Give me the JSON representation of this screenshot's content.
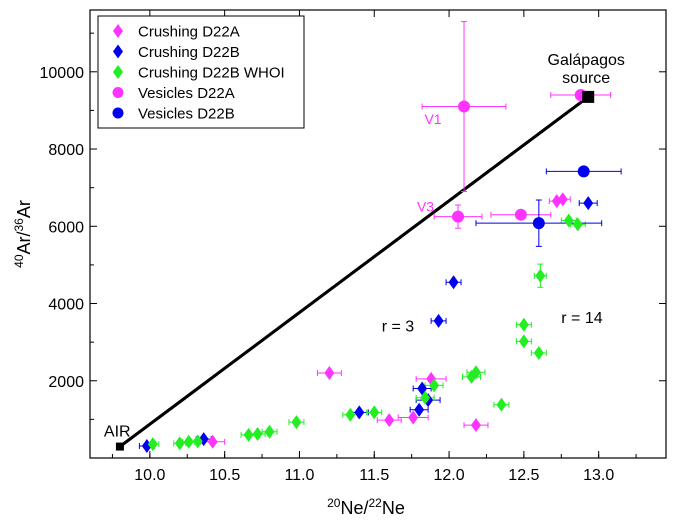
{
  "chart_data": {
    "type": "scatter",
    "xlabel": {
      "sup": "20",
      "base": "Ne/",
      "sup2": "22",
      "base2": "Ne"
    },
    "ylabel": {
      "sup": "40",
      "base": "Ar/",
      "sup2": "36",
      "base2": "Ar"
    },
    "xlim": [
      9.6,
      13.45
    ],
    "ylim": [
      0,
      11600
    ],
    "xticks": [
      "10.0",
      "10.5",
      "11.0",
      "11.5",
      "12.0",
      "12.5",
      "13.0"
    ],
    "xtick_values": [
      10.0,
      10.5,
      11.0,
      11.5,
      12.0,
      12.5,
      13.0
    ],
    "yticks": [
      "2000",
      "4000",
      "6000",
      "8000",
      "10000"
    ],
    "ytick_values": [
      2000,
      4000,
      6000,
      8000,
      10000
    ],
    "colors": {
      "magenta": "#ff33ff",
      "blue": "#0000ee",
      "green": "#22ee22",
      "r3_curve": "#606060",
      "r14_curve": "#000000"
    },
    "series": [
      {
        "name": "Crushing D22A",
        "marker": "diamond",
        "color": "#ff33ff",
        "points": [
          {
            "x": 11.2,
            "y": 2200,
            "xerr": 0.08
          },
          {
            "x": 11.88,
            "y": 2050,
            "xerr": 0.1
          },
          {
            "x": 11.76,
            "y": 1050,
            "xerr": 0.1
          },
          {
            "x": 11.6,
            "y": 980,
            "xerr": 0.08
          },
          {
            "x": 12.18,
            "y": 850,
            "xerr": 0.08
          },
          {
            "x": 10.42,
            "y": 420,
            "xerr": 0.08
          },
          {
            "x": 12.72,
            "y": 6650,
            "xerr": 0.05
          },
          {
            "x": 12.76,
            "y": 6700,
            "xerr": 0.05
          }
        ]
      },
      {
        "name": "Crushing D22B",
        "marker": "diamond",
        "color": "#0000ee",
        "points": [
          {
            "x": 12.03,
            "y": 4550,
            "xerr": 0.05
          },
          {
            "x": 11.93,
            "y": 3550,
            "xerr": 0.05
          },
          {
            "x": 11.82,
            "y": 1800,
            "xerr": 0.06
          },
          {
            "x": 11.86,
            "y": 1500,
            "xerr": 0.08
          },
          {
            "x": 11.8,
            "y": 1250,
            "xerr": 0.06
          },
          {
            "x": 11.4,
            "y": 1180,
            "xerr": 0.06
          },
          {
            "x": 10.36,
            "y": 490,
            "xerr": 0.05
          },
          {
            "x": 9.98,
            "y": 310,
            "xerr": 0.05
          },
          {
            "x": 12.93,
            "y": 6600,
            "xerr": 0.06
          }
        ]
      },
      {
        "name": "Crushing D22B WHOI",
        "marker": "diamond",
        "color": "#22ee22",
        "points": [
          {
            "x": 10.02,
            "y": 360,
            "xerr": 0.04
          },
          {
            "x": 10.2,
            "y": 380,
            "xerr": 0.04
          },
          {
            "x": 10.26,
            "y": 420,
            "xerr": 0.04
          },
          {
            "x": 10.32,
            "y": 430,
            "xerr": 0.04
          },
          {
            "x": 10.66,
            "y": 600,
            "xerr": 0.05
          },
          {
            "x": 10.72,
            "y": 620,
            "xerr": 0.05
          },
          {
            "x": 10.8,
            "y": 680,
            "xerr": 0.05
          },
          {
            "x": 10.98,
            "y": 930,
            "xerr": 0.05
          },
          {
            "x": 11.34,
            "y": 1120,
            "xerr": 0.05
          },
          {
            "x": 11.5,
            "y": 1180,
            "xerr": 0.05
          },
          {
            "x": 11.84,
            "y": 1560,
            "xerr": 0.06
          },
          {
            "x": 11.9,
            "y": 1880,
            "xerr": 0.06
          },
          {
            "x": 12.15,
            "y": 2100,
            "xerr": 0.06
          },
          {
            "x": 12.18,
            "y": 2220,
            "xerr": 0.06
          },
          {
            "x": 12.35,
            "y": 1380,
            "xerr": 0.05
          },
          {
            "x": 12.5,
            "y": 3450,
            "xerr": 0.05
          },
          {
            "x": 12.5,
            "y": 3020,
            "xerr": 0.05
          },
          {
            "x": 12.6,
            "y": 2720,
            "xerr": 0.05
          },
          {
            "x": 12.61,
            "y": 4720,
            "xerr": 0.04,
            "yerr": 300
          },
          {
            "x": 12.8,
            "y": 6150,
            "xerr": 0.05
          },
          {
            "x": 12.86,
            "y": 6050,
            "xerr": 0.05
          }
        ]
      },
      {
        "name": "Vesicles D22A",
        "marker": "circle",
        "color": "#ff33ff",
        "points": [
          {
            "x": 12.1,
            "y": 9100,
            "xerr": 0.28,
            "yerr": 2200
          },
          {
            "x": 12.06,
            "y": 6250,
            "xerr": 0.16,
            "yerr": 300
          },
          {
            "x": 12.48,
            "y": 6300,
            "xerr": 0.2
          },
          {
            "x": 12.88,
            "y": 9400,
            "xerr": 0.2
          }
        ]
      },
      {
        "name": "Vesicles D22B",
        "marker": "circle",
        "color": "#0000ee",
        "points": [
          {
            "x": 12.9,
            "y": 7420,
            "xerr": 0.25
          },
          {
            "x": 12.6,
            "y": 6080,
            "xerr": 0.42,
            "yerr": 600
          }
        ]
      }
    ],
    "curves": [
      {
        "label": "r = 3",
        "color": "#606060",
        "r": 3,
        "label_x": 11.55,
        "label_y": 3280
      },
      {
        "label": "r = 14",
        "color": "#000000",
        "r": 14,
        "label_x": 12.75,
        "label_y": 3500
      }
    ],
    "endpoints": {
      "air": {
        "label": "AIR",
        "x": 9.8,
        "y": 296
      },
      "source": {
        "label_line1": "Galápagos",
        "label_line2": "source",
        "x": 12.93,
        "y": 9350
      }
    },
    "annotations": [
      {
        "text": "V1",
        "x": 11.95,
        "y": 8650,
        "color": "#ff33ff"
      },
      {
        "text": "V3",
        "x": 11.9,
        "y": 6380,
        "color": "#ff33ff"
      }
    ],
    "legend": {
      "position": "top-left"
    }
  }
}
